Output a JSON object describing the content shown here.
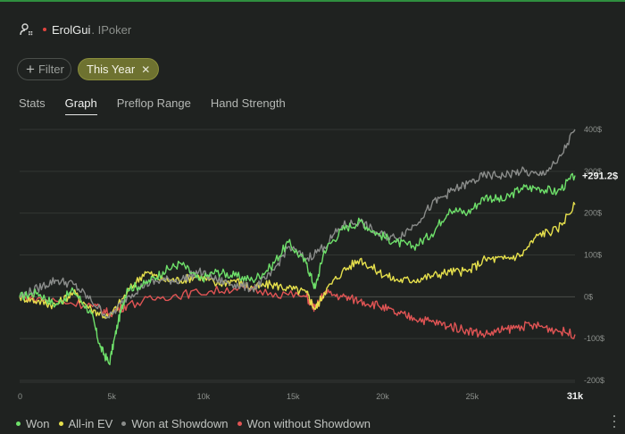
{
  "player": {
    "name": "ErolGui",
    "site": "IPoker",
    "status_color": "#e0443e",
    "icon": "user-settings-icon"
  },
  "filters": {
    "filter_label": "Filter",
    "active_label": "This Year"
  },
  "tabs": [
    "Stats",
    "Graph",
    "Preflop Range",
    "Hand Strength"
  ],
  "active_tab": "Graph",
  "chart_data": {
    "type": "line",
    "x_ticks": [
      "0",
      "5k",
      "10k",
      "15k",
      "20k",
      "25k",
      "31k"
    ],
    "y_ticks": [
      "400$",
      "300$",
      "200$",
      "100$",
      "0$",
      "-100$",
      "-200$"
    ],
    "xlim": [
      0,
      31000
    ],
    "ylim": [
      -200,
      400
    ],
    "grid": true,
    "current_value_label": "+291.2$",
    "series": [
      {
        "name": "Won",
        "color": "#6ee06a",
        "x": [
          0,
          1000,
          2000,
          3000,
          4000,
          4500,
          5000,
          5500,
          6000,
          7000,
          8000,
          9000,
          10000,
          11000,
          12000,
          13000,
          14000,
          15000,
          16000,
          16500,
          17000,
          18000,
          19000,
          20000,
          21000,
          22000,
          23000,
          24000,
          25000,
          26000,
          27000,
          28000,
          29000,
          30000,
          31000
        ],
        "y": [
          0,
          10,
          -20,
          15,
          -40,
          -120,
          -160,
          -60,
          20,
          30,
          60,
          80,
          40,
          60,
          50,
          40,
          70,
          130,
          80,
          20,
          110,
          160,
          180,
          150,
          130,
          120,
          150,
          210,
          200,
          240,
          230,
          260,
          260,
          250,
          290
        ]
      },
      {
        "name": "All-in EV",
        "color": "#e6e04c",
        "x": [
          0,
          1000,
          2000,
          3000,
          4000,
          5000,
          6000,
          7000,
          8000,
          9000,
          10000,
          11000,
          12000,
          13000,
          14000,
          15000,
          16000,
          16500,
          17000,
          18000,
          19000,
          20000,
          21000,
          22000,
          23000,
          24000,
          25000,
          26000,
          27000,
          28000,
          29000,
          30000,
          31000
        ],
        "y": [
          0,
          -10,
          -20,
          10,
          -30,
          -50,
          10,
          60,
          40,
          40,
          50,
          30,
          40,
          20,
          30,
          20,
          10,
          -30,
          10,
          60,
          90,
          60,
          40,
          40,
          50,
          60,
          60,
          90,
          90,
          100,
          150,
          160,
          220
        ]
      },
      {
        "name": "Won at Showdown",
        "color": "#8a8c8a",
        "x": [
          0,
          1000,
          2000,
          3000,
          4000,
          5000,
          6000,
          7000,
          8000,
          9000,
          10000,
          11000,
          12000,
          13000,
          14000,
          15000,
          16000,
          17000,
          18000,
          19000,
          20000,
          21000,
          22000,
          23000,
          24000,
          25000,
          26000,
          27000,
          28000,
          29000,
          30000,
          31000
        ],
        "y": [
          0,
          20,
          40,
          30,
          -10,
          -50,
          0,
          30,
          40,
          40,
          60,
          40,
          30,
          20,
          50,
          120,
          90,
          120,
          170,
          180,
          150,
          140,
          170,
          220,
          250,
          270,
          290,
          290,
          300,
          290,
          320,
          400
        ]
      },
      {
        "name": "Won without Showdown",
        "color": "#e05454",
        "x": [
          0,
          2000,
          4000,
          5000,
          6000,
          8000,
          10000,
          12000,
          14000,
          16000,
          16500,
          17000,
          18000,
          19000,
          20000,
          21000,
          22000,
          23000,
          24000,
          25000,
          26000,
          27000,
          28000,
          29000,
          30000,
          31000
        ],
        "y": [
          0,
          -10,
          -20,
          -40,
          -20,
          0,
          10,
          20,
          10,
          0,
          -30,
          10,
          0,
          -10,
          -20,
          -40,
          -50,
          -60,
          -70,
          -80,
          -90,
          -80,
          -70,
          -70,
          -80,
          -90
        ]
      }
    ]
  },
  "legend": [
    "Won",
    "All-in EV",
    "Won at Showdown",
    "Won without Showdown"
  ],
  "more_icon": "more-vertical-icon"
}
